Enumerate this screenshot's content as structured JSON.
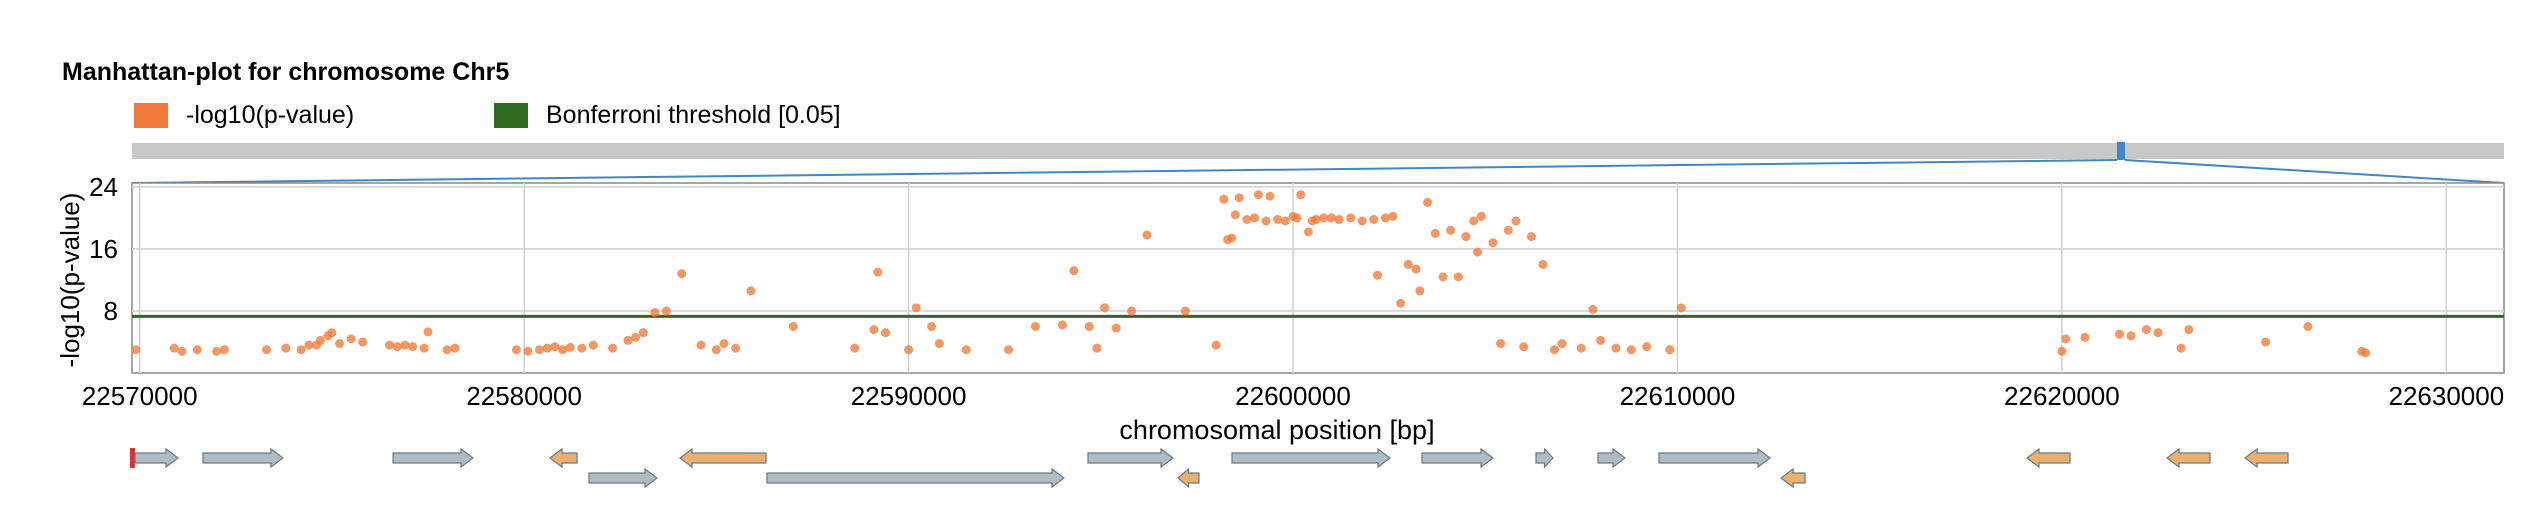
{
  "chart_data": {
    "type": "scatter",
    "title": "Manhattan-plot for chromosome Chr5",
    "xlabel": "chromosomal position [bp]",
    "ylabel": "-log10(p-value)",
    "xlim": [
      22569800,
      22631500
    ],
    "ylim": [
      0,
      24.5
    ],
    "x_ticks": [
      22570000,
      22580000,
      22590000,
      22600000,
      22610000,
      22620000,
      22630000
    ],
    "x_tick_labels": [
      "22570000",
      "22580000",
      "22590000",
      "22600000",
      "22610000",
      "22620000",
      "22630000"
    ],
    "y_ticks": [
      8,
      16,
      24
    ],
    "y_tick_labels": [
      "8",
      "16",
      "24"
    ],
    "grid": true,
    "legend": [
      {
        "label": "-log10(p-value)",
        "color": "#f07a3a"
      },
      {
        "label": "Bonferroni threshold [0.05]",
        "color": "#2e6b1f"
      }
    ],
    "threshold": {
      "value": 7.3,
      "color": "#2e6b1f"
    },
    "point_color": "#f07a3a",
    "overview": {
      "genome_fraction_start": 0.842,
      "genome_fraction_end": 0.848
    },
    "series": [
      {
        "values": [
          [
            22569900,
            3.0
          ],
          [
            22570900,
            3.2
          ],
          [
            22571100,
            2.8
          ],
          [
            22571500,
            3.0
          ],
          [
            22572000,
            2.8
          ],
          [
            22572200,
            3.0
          ],
          [
            22573300,
            3.0
          ],
          [
            22573800,
            3.2
          ],
          [
            22574200,
            3.0
          ],
          [
            22574400,
            3.6
          ],
          [
            22574600,
            3.6
          ],
          [
            22574700,
            4.2
          ],
          [
            22574900,
            4.8
          ],
          [
            22575000,
            5.2
          ],
          [
            22575200,
            3.8
          ],
          [
            22575500,
            4.4
          ],
          [
            22575800,
            4.0
          ],
          [
            22576500,
            3.6
          ],
          [
            22576700,
            3.4
          ],
          [
            22576900,
            3.6
          ],
          [
            22577100,
            3.4
          ],
          [
            22577400,
            3.2
          ],
          [
            22577500,
            5.3
          ],
          [
            22578000,
            3.0
          ],
          [
            22579800,
            3.0
          ],
          [
            22580100,
            2.8
          ],
          [
            22580400,
            3.0
          ],
          [
            22580600,
            3.2
          ],
          [
            22580800,
            3.4
          ],
          [
            22581000,
            3.0
          ],
          [
            22581200,
            3.3
          ],
          [
            22581500,
            3.2
          ],
          [
            22581800,
            3.6
          ],
          [
            22582300,
            3.2
          ],
          [
            22582700,
            4.2
          ],
          [
            22582900,
            4.6
          ],
          [
            22583100,
            5.2
          ],
          [
            22583400,
            7.8
          ],
          [
            22583700,
            8.0
          ],
          [
            22584100,
            12.8
          ],
          [
            22584600,
            3.6
          ],
          [
            22585000,
            3.0
          ],
          [
            22585200,
            3.8
          ],
          [
            22585500,
            3.2
          ],
          [
            22585900,
            10.6
          ],
          [
            22587000,
            6.0
          ],
          [
            22588600,
            3.2
          ],
          [
            22589100,
            5.6
          ],
          [
            22589200,
            13.0
          ],
          [
            22589400,
            5.2
          ],
          [
            22590000,
            3.0
          ],
          [
            22590200,
            8.4
          ],
          [
            22590600,
            6.0
          ],
          [
            22590800,
            3.8
          ],
          [
            22591500,
            3.0
          ],
          [
            22592600,
            3.0
          ],
          [
            22593300,
            6.0
          ],
          [
            22594000,
            6.2
          ],
          [
            22594300,
            13.2
          ],
          [
            22594700,
            6.0
          ],
          [
            22594900,
            3.2
          ],
          [
            22595100,
            8.4
          ],
          [
            22595400,
            5.8
          ],
          [
            22595800,
            8.0
          ],
          [
            22596200,
            17.8
          ],
          [
            22597200,
            8.0
          ],
          [
            22598000,
            3.6
          ],
          [
            22598300,
            17.2
          ],
          [
            22598500,
            20.4
          ],
          [
            22598800,
            19.8
          ],
          [
            22599000,
            20.0
          ],
          [
            22599300,
            19.6
          ],
          [
            22599600,
            19.8
          ],
          [
            22599800,
            19.6
          ],
          [
            22600000,
            20.2
          ],
          [
            22600200,
            23.0
          ],
          [
            22600400,
            18.2
          ],
          [
            22600600,
            19.8
          ],
          [
            22600800,
            20.0
          ],
          [
            22601200,
            19.8
          ],
          [
            22601500,
            20.0
          ],
          [
            22601800,
            19.6
          ],
          [
            22602100,
            19.8
          ],
          [
            22602400,
            20.0
          ],
          [
            22602600,
            20.2
          ],
          [
            22602800,
            9.0
          ],
          [
            22603000,
            14.0
          ],
          [
            22603200,
            13.4
          ],
          [
            22603500,
            22.0
          ],
          [
            22603700,
            18.0
          ],
          [
            22604100,
            18.4
          ],
          [
            22604300,
            12.4
          ],
          [
            22604500,
            17.6
          ],
          [
            22604700,
            19.6
          ],
          [
            22604900,
            20.2
          ],
          [
            22605200,
            16.8
          ],
          [
            22605400,
            3.8
          ],
          [
            22605600,
            18.4
          ],
          [
            22605800,
            19.6
          ],
          [
            22606000,
            3.4
          ],
          [
            22606200,
            17.6
          ],
          [
            22606500,
            14.0
          ],
          [
            22606800,
            3.0
          ],
          [
            22607000,
            3.8
          ],
          [
            22607500,
            3.2
          ],
          [
            22607800,
            8.2
          ],
          [
            22608400,
            3.2
          ],
          [
            22608800,
            3.0
          ],
          [
            22609200,
            3.4
          ],
          [
            22609800,
            3.0
          ],
          [
            22610100,
            8.4
          ],
          [
            22608000,
            4.2
          ],
          [
            22599100,
            23.0
          ],
          [
            22599400,
            22.8
          ],
          [
            22602200,
            12.6
          ],
          [
            22603300,
            10.6
          ],
          [
            22620000,
            2.8
          ],
          [
            22620100,
            4.4
          ],
          [
            22620600,
            4.6
          ],
          [
            22621500,
            5.0
          ],
          [
            22621800,
            4.8
          ],
          [
            22622200,
            5.6
          ],
          [
            22622500,
            5.2
          ],
          [
            22623100,
            3.2
          ],
          [
            22623300,
            5.6
          ],
          [
            22625300,
            4.0
          ],
          [
            22626400,
            6.0
          ],
          [
            22627800,
            2.8
          ],
          [
            22627900,
            2.6
          ],
          [
            22598200,
            22.4
          ],
          [
            22598600,
            22.6
          ],
          [
            22598400,
            17.4
          ],
          [
            22600100,
            20.0
          ],
          [
            22600500,
            19.6
          ],
          [
            22601000,
            20.0
          ],
          [
            22603900,
            12.4
          ],
          [
            22604800,
            15.6
          ],
          [
            22578200,
            3.2
          ]
        ]
      }
    ]
  }
}
